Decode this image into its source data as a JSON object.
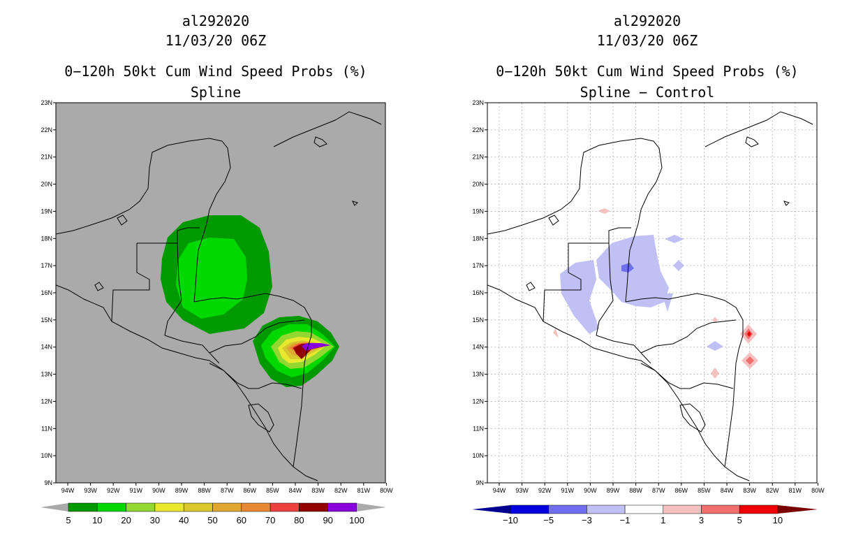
{
  "left": {
    "title_storm": "al292020",
    "title_time": "11/03/20 06Z",
    "title_product": "0−120h 50kt Cum Wind Speed Probs (%)",
    "title_method": "Spline",
    "lat_labels": [
      "23N",
      "22N",
      "21N",
      "20N",
      "19N",
      "18N",
      "17N",
      "16N",
      "15N",
      "14N",
      "13N",
      "12N",
      "11N",
      "10N",
      "9N"
    ],
    "lon_labels": [
      "94W",
      "93W",
      "92W",
      "91W",
      "90W",
      "89W",
      "88W",
      "87W",
      "86W",
      "85W",
      "84W",
      "83W",
      "82W",
      "81W",
      "80W"
    ],
    "colorbar_labels": [
      "5",
      "10",
      "20",
      "30",
      "40",
      "50",
      "60",
      "70",
      "80",
      "90",
      "100"
    ],
    "colorbar_colors": [
      "#009a00",
      "#00d800",
      "#93d830",
      "#e8e82e",
      "#d8c82e",
      "#e0a830",
      "#e88830",
      "#ef4040",
      "#930000",
      "#8800dd"
    ],
    "land_bg": "#aaaaaa"
  },
  "right": {
    "title_storm": "al292020",
    "title_time": "11/03/20 06Z",
    "title_product": "0−120h 50kt Cum Wind Speed Probs (%)",
    "title_method": "Spline − Control",
    "lat_labels": [
      "23N",
      "22N",
      "21N",
      "20N",
      "19N",
      "18N",
      "17N",
      "16N",
      "15N",
      "14N",
      "13N",
      "12N",
      "11N",
      "10N",
      "9N"
    ],
    "lon_labels": [
      "94W",
      "93W",
      "92W",
      "91W",
      "90W",
      "89W",
      "88W",
      "87W",
      "86W",
      "85W",
      "84W",
      "83W",
      "82W",
      "81W",
      "80W"
    ],
    "colorbar_labels": [
      "−10",
      "−5",
      "−3",
      "−1",
      "1",
      "3",
      "5",
      "10"
    ],
    "colorbar_colors": [
      "#0000dd",
      "#6f6fef",
      "#c0c0f4",
      "#ffffff",
      "#f4c0c0",
      "#ef6f6f",
      "#ee0000"
    ],
    "under_color": "#000090",
    "over_color": "#7a0000"
  }
}
